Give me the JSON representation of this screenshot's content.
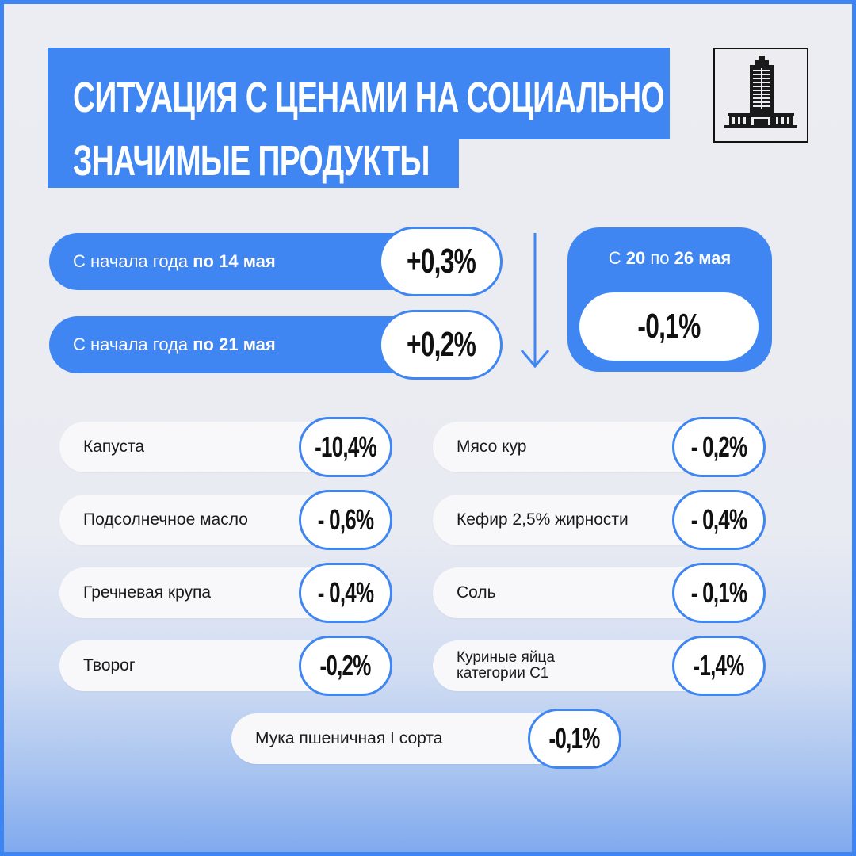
{
  "title": {
    "line1": "СИТУАЦИЯ С ЦЕНАМИ НА СОЦИАЛЬНО",
    "line2": "ЗНАЧИМЫЕ ПРОДУКТЫ"
  },
  "ytd": [
    {
      "label_prefix": "С начала года ",
      "label_bold": "по 14 мая",
      "value": "+0,3%"
    },
    {
      "label_prefix": "С начала года ",
      "label_bold": "по 21 мая",
      "value": "+0,2%"
    }
  ],
  "weekly": {
    "label_prefix": "С ",
    "label_from": "20",
    "label_mid": " по ",
    "label_to": "26 мая",
    "value": "-0,1%"
  },
  "products": [
    {
      "name": "Капуста",
      "change": "-10,4%"
    },
    {
      "name": "Мясо кур",
      "change": "- 0,2%"
    },
    {
      "name": "Подсолнечное масло",
      "change": "- 0,6%"
    },
    {
      "name": "Кефир 2,5% жирности",
      "change": "- 0,4%"
    },
    {
      "name": "Гречневая крупа",
      "change": "- 0,4%"
    },
    {
      "name": "Соль",
      "change": "- 0,1%"
    },
    {
      "name": "Творог",
      "change": "-0,2%"
    },
    {
      "name_line1": "Куриные яйца",
      "name_line2": "категории С1",
      "change": "-1,4%"
    },
    {
      "name": "Мука пшеничная I сорта",
      "change": "-0,1%"
    }
  ],
  "colors": {
    "accent": "#3f86f3",
    "pill_bg": "#f8f8fa",
    "background": "#ecedf2"
  }
}
